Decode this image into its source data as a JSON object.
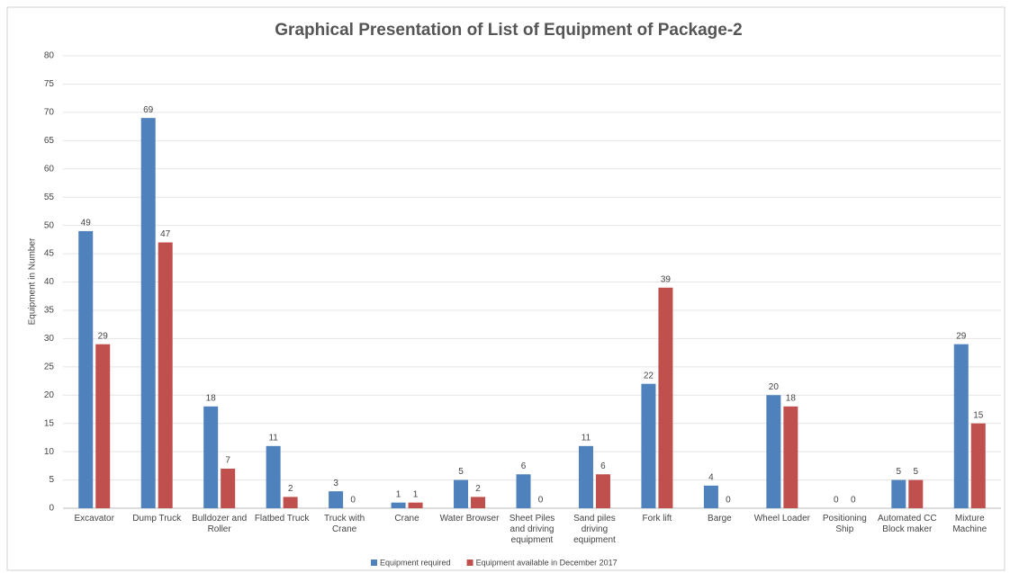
{
  "chart_data": {
    "type": "bar",
    "title": "Graphical Presentation of List of Equipment of Package-2",
    "y_label": "Equipment in Number",
    "categories": [
      "Excavator",
      "Dump Truck",
      "Bulldozer and Roller",
      "Flatbed Truck",
      "Truck with Crane",
      "Crane",
      "Water Browser",
      "Sheet Piles and driving equipment",
      "Sand piles driving equipment",
      "Fork lift",
      "Barge",
      "Wheel Loader",
      "Positioning Ship",
      "Automated CC Block maker",
      "Mixture Machine"
    ],
    "series": [
      {
        "name": "Equipment required",
        "color": "#4f81bd",
        "values": [
          49,
          69,
          18,
          11,
          3,
          1,
          5,
          6,
          11,
          22,
          4,
          20,
          0,
          5,
          29
        ]
      },
      {
        "name": "Equipment available in December 2017",
        "color": "#c0504d",
        "values": [
          29,
          47,
          7,
          2,
          0,
          1,
          2,
          0,
          6,
          39,
          0,
          18,
          0,
          5,
          15
        ]
      }
    ],
    "ylim": [
      0,
      80
    ],
    "yticks": [
      0,
      5,
      10,
      15,
      20,
      25,
      30,
      35,
      40,
      45,
      50,
      55,
      60,
      65,
      70,
      75,
      80
    ],
    "grid": true,
    "legend": "bottom"
  }
}
